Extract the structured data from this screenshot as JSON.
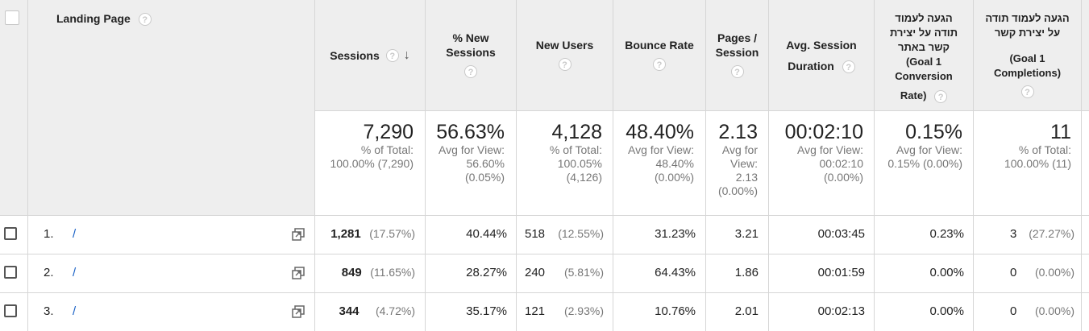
{
  "headers": {
    "landing_page": "Landing Page",
    "sessions": "Sessions",
    "pct_new_sessions_l1": "% New",
    "pct_new_sessions_l2": "Sessions",
    "new_users": "New Users",
    "bounce_rate": "Bounce Rate",
    "pages_session_l1": "Pages /",
    "pages_session_l2": "Session",
    "avg_session_l1": "Avg. Session",
    "avg_session_l2": "Duration",
    "goal_rate_l1": "הגעה לעמוד",
    "goal_rate_l2": "תודה על יצירת",
    "goal_rate_l3": "קשר באתר",
    "goal_rate_l4": "(Goal 1",
    "goal_rate_l5": "Conversion",
    "goal_rate_l6": "Rate)",
    "goal_comp_l1": "הגעה לעמוד תודה",
    "goal_comp_l2": "על יצירת קשר",
    "goal_comp_l3": "(Goal 1",
    "goal_comp_l4": "Completions)"
  },
  "help_icon": "?",
  "sort_icon": "↓",
  "totals": {
    "sessions": {
      "value": "7,290",
      "l1": "% of Total:",
      "l2": "100.00% (7,290)"
    },
    "pct_new_sessions": {
      "value": "56.63%",
      "l1": "Avg for View:",
      "l2": "56.60%",
      "l3": "(0.05%)"
    },
    "new_users": {
      "value": "4,128",
      "l1": "% of Total:",
      "l2": "100.05%",
      "l3": "(4,126)"
    },
    "bounce_rate": {
      "value": "48.40%",
      "l1": "Avg for View:",
      "l2": "48.40%",
      "l3": "(0.00%)"
    },
    "pages_session": {
      "value": "2.13",
      "l1": "Avg for",
      "l2": "View:",
      "l3": "2.13",
      "l4": "(0.00%)"
    },
    "avg_session": {
      "value": "00:02:10",
      "l1": "Avg for View:",
      "l2": "00:02:10",
      "l3": "(0.00%)"
    },
    "goal_rate": {
      "value": "0.15%",
      "l1": "Avg for View:",
      "l2": "0.15% (0.00%)"
    },
    "goal_comp": {
      "value": "11",
      "l1": "% of Total:",
      "l2": "100.00% (11)"
    }
  },
  "rows": [
    {
      "num": "1.",
      "page": "/",
      "sessions": "1,281",
      "sessions_pct": "(17.57%)",
      "pct_new": "40.44%",
      "new_users": "518",
      "new_users_pct": "(12.55%)",
      "bounce": "31.23%",
      "pages": "3.21",
      "duration": "00:03:45",
      "goal_rate": "0.23%",
      "goal_comp": "3",
      "goal_comp_pct": "(27.27%)"
    },
    {
      "num": "2.",
      "page": "/",
      "sessions": "849",
      "sessions_pct": "(11.65%)",
      "pct_new": "28.27%",
      "new_users": "240",
      "new_users_pct": "(5.81%)",
      "bounce": "64.43%",
      "pages": "1.86",
      "duration": "00:01:59",
      "goal_rate": "0.00%",
      "goal_comp": "0",
      "goal_comp_pct": "(0.00%)"
    },
    {
      "num": "3.",
      "page": "/",
      "sessions": "344",
      "sessions_pct": "(4.72%)",
      "pct_new": "35.17%",
      "new_users": "121",
      "new_users_pct": "(2.93%)",
      "bounce": "10.76%",
      "pages": "2.01",
      "duration": "00:02:13",
      "goal_rate": "0.00%",
      "goal_comp": "0",
      "goal_comp_pct": "(0.00%)"
    }
  ]
}
